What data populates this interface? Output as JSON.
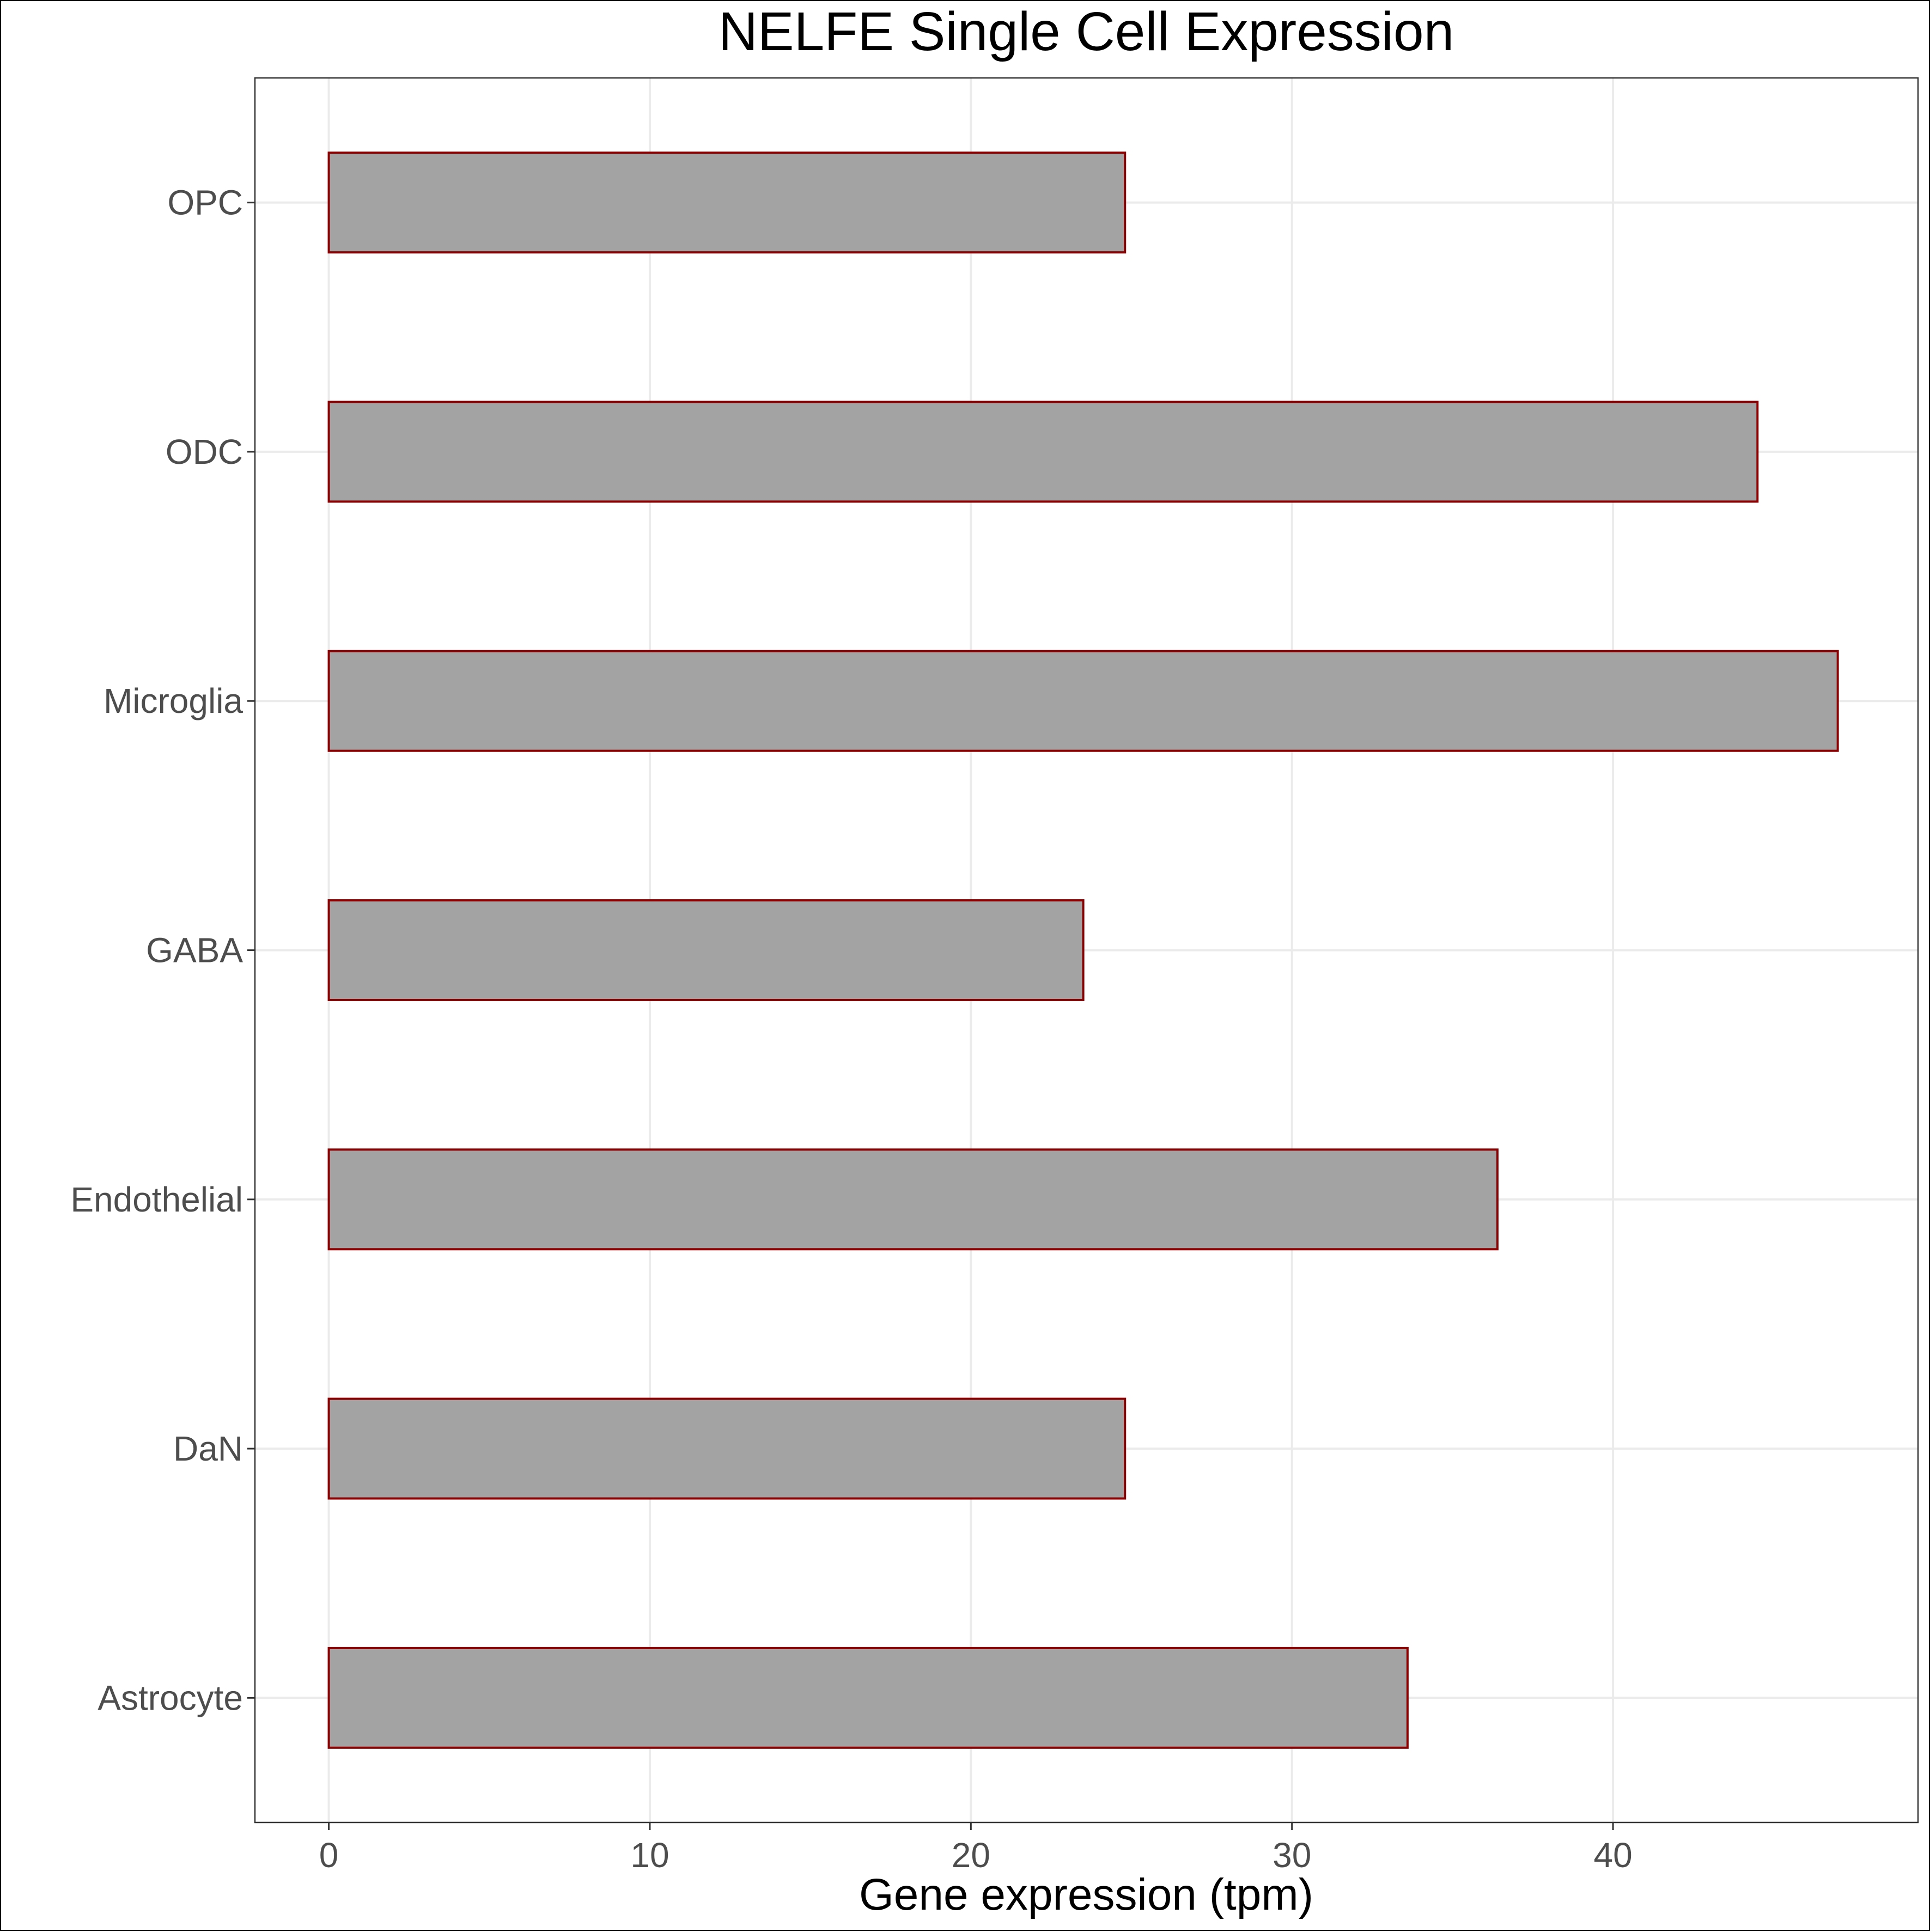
{
  "chart_data": {
    "type": "bar",
    "orientation": "horizontal",
    "title": "NELFE Single Cell Expression",
    "xlabel": "Gene expression (tpm)",
    "ylabel": "",
    "categories": [
      "OPC",
      "ODC",
      "Microglia",
      "GABA",
      "Endothelial",
      "DaN",
      "Astrocyte"
    ],
    "values": [
      24.8,
      44.5,
      47.0,
      23.5,
      36.4,
      24.8,
      33.6
    ],
    "xlim": [
      -2.3,
      49.5
    ],
    "xticks": [
      0,
      10,
      20,
      30,
      40
    ],
    "grid": true,
    "legend": "none",
    "bar_fill": "#a3a3a3",
    "bar_outline": "#8b0000",
    "grid_color": "#ebebeb"
  }
}
